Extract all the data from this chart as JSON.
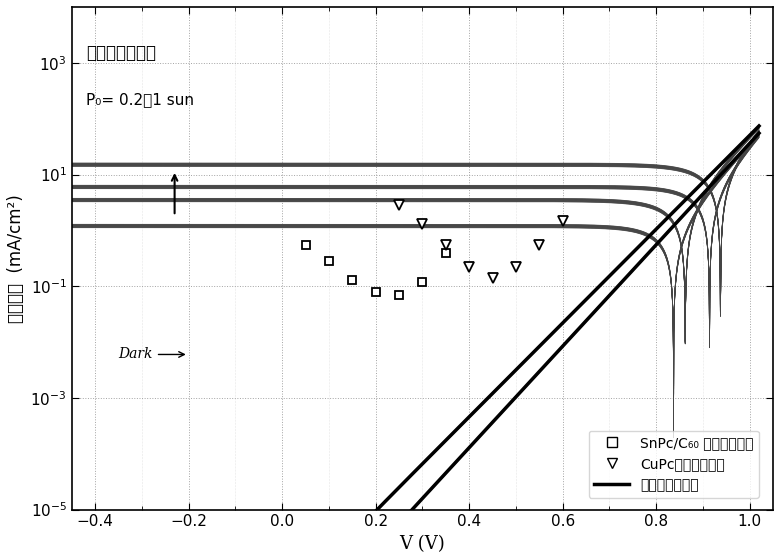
{
  "xlabel": "V (V)",
  "ylabel": "电流密度  (mA/cm²)",
  "annotation_text1": "增加的照明强度",
  "annotation_text2": "P₀= 0.2和1 sun",
  "dark_label": "Dark",
  "legend1": "SnPc/C₆₀ 电池测量数据",
  "legend2": "CuPc电池测量数据",
  "legend3": "暗电流拟合结果",
  "xlim": [
    -0.45,
    1.05
  ],
  "background_color": "#ffffff",
  "grid_color": "#888888",
  "VT": 0.02585,
  "J0_snpc": 3e-08,
  "n_snpc": 1.85,
  "J0_cupc": 2e-07,
  "n_cupc": 2.0,
  "Jph_snpc_02": 1.2,
  "Jph_snpc_1": 6.0,
  "Jph_cupc_02": 3.5,
  "Jph_cupc_1": 15.0,
  "V_snpc_pts": [
    0.05,
    0.1,
    0.15,
    0.2,
    0.25,
    0.3,
    0.35
  ],
  "J_snpc_pts": [
    0.55,
    0.28,
    0.13,
    0.08,
    0.07,
    0.12,
    0.4
  ],
  "V_cupc_pts": [
    0.25,
    0.3,
    0.35,
    0.4,
    0.45,
    0.5,
    0.55,
    0.6
  ],
  "J_cupc_pts": [
    2.8,
    1.3,
    0.55,
    0.22,
    0.14,
    0.22,
    0.55,
    1.5
  ]
}
